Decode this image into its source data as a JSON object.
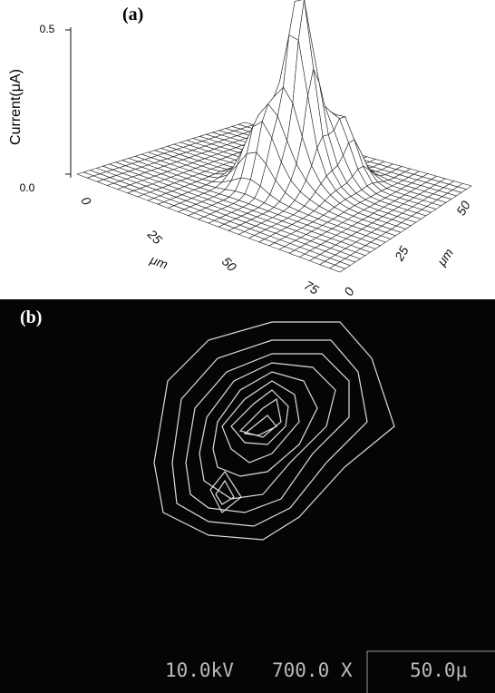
{
  "panel_a": {
    "label": "(a)",
    "z_axis": {
      "label": "Current(μA)",
      "ticks": [
        "0.0",
        "0.5"
      ]
    },
    "x_axis": {
      "label": "μm",
      "ticks": [
        "0",
        "25",
        "50",
        "75"
      ]
    },
    "y_axis": {
      "label": "μm",
      "ticks": [
        "0",
        "25",
        "50"
      ]
    }
  },
  "panel_b": {
    "label": "(b)",
    "info": [
      "10.0kV",
      "700.0 X",
      "50.0μ"
    ]
  }
}
